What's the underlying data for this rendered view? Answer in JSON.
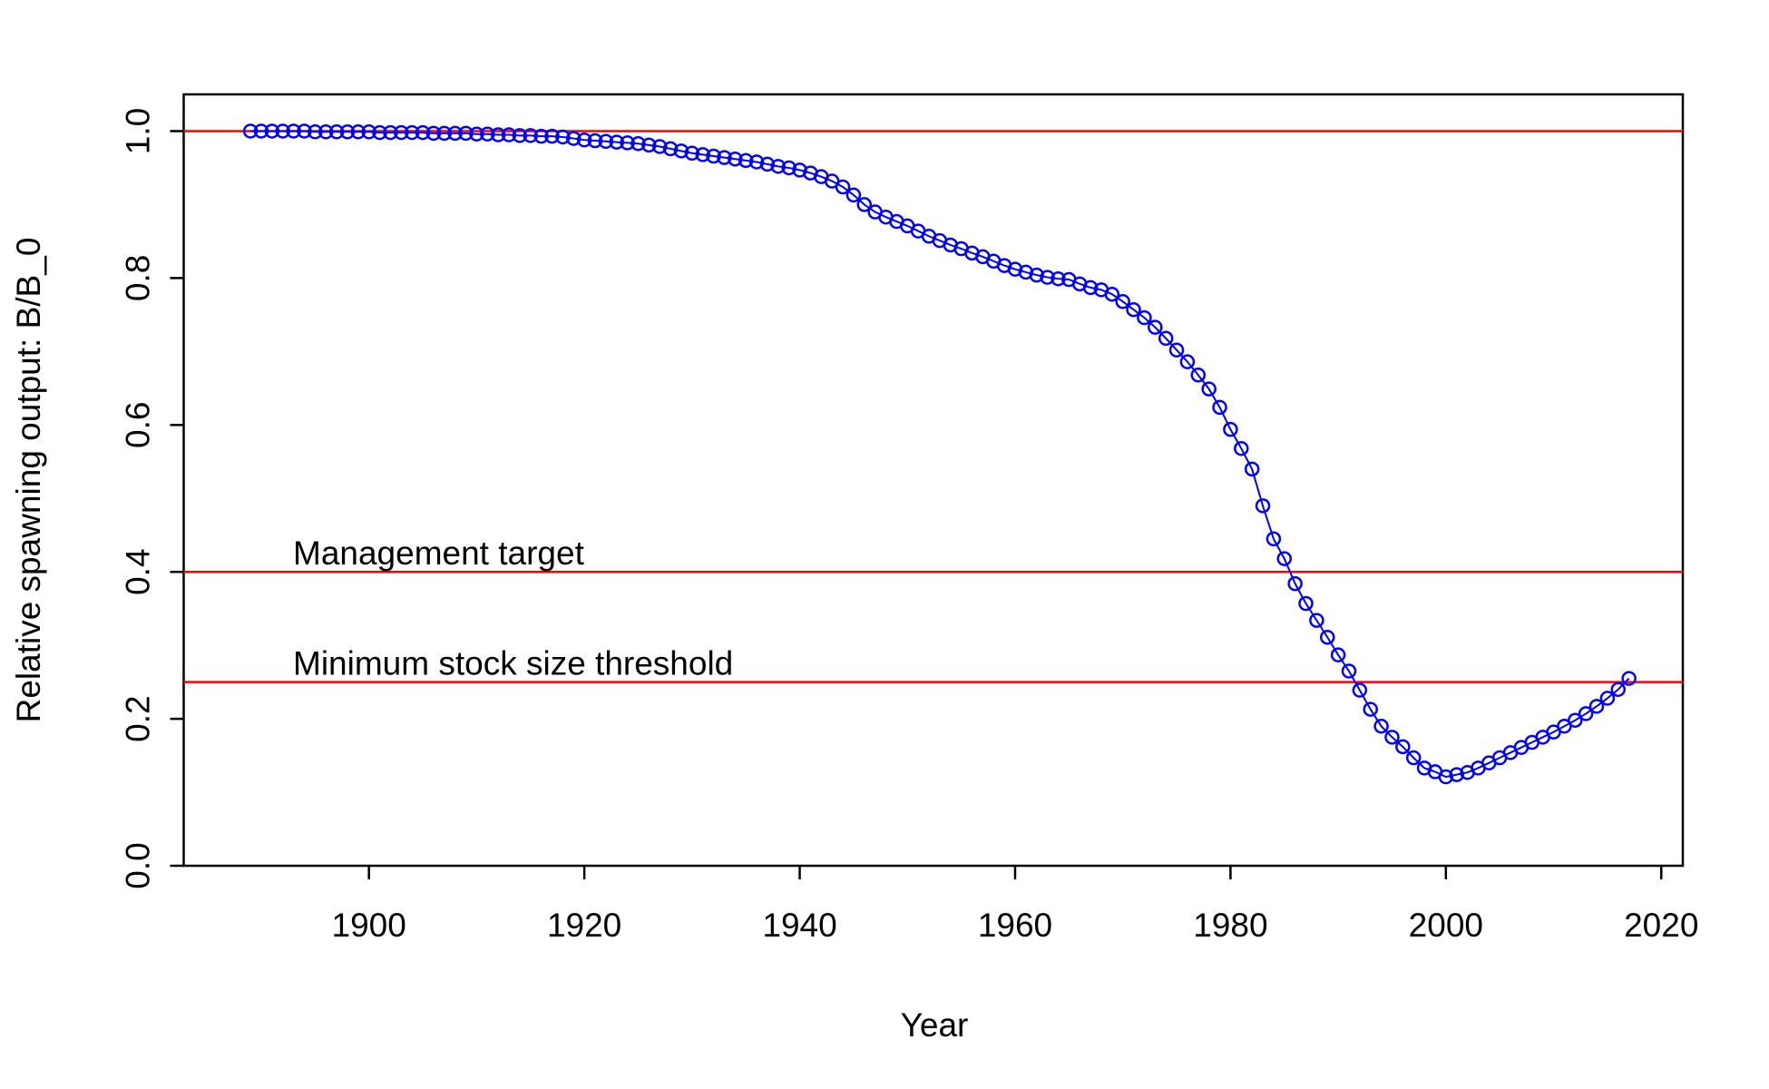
{
  "chart_data": {
    "type": "line",
    "xlabel": "Year",
    "ylabel": "Relative spawning output: B/B_0",
    "xlim": [
      1882.8,
      2022.0
    ],
    "ylim": [
      0,
      1.05
    ],
    "xticks": [
      1900,
      1920,
      1940,
      1960,
      1980,
      2000,
      2020
    ],
    "yticks": [
      {
        "value": 0,
        "label": "0.0"
      },
      0.2,
      0.4,
      0.6,
      0.8,
      {
        "value": 1,
        "label": "1.0"
      }
    ],
    "color": "#0000ff",
    "reference_color": "#ff0000",
    "reference_lines": [
      {
        "value": 1
      },
      {
        "value": 0.4,
        "label": "Management target"
      },
      {
        "value": 0.25,
        "label": "Minimum stock size threshold"
      }
    ],
    "x": [
      1889,
      1890,
      1891,
      1892,
      1893,
      1894,
      1895,
      1896,
      1897,
      1898,
      1899,
      1900,
      1901,
      1902,
      1903,
      1904,
      1905,
      1906,
      1907,
      1908,
      1909,
      1910,
      1911,
      1912,
      1913,
      1914,
      1915,
      1916,
      1917,
      1918,
      1919,
      1920,
      1921,
      1922,
      1923,
      1924,
      1925,
      1926,
      1927,
      1928,
      1929,
      1930,
      1931,
      1932,
      1933,
      1934,
      1935,
      1936,
      1937,
      1938,
      1939,
      1940,
      1941,
      1942,
      1943,
      1944,
      1945,
      1946,
      1947,
      1948,
      1949,
      1950,
      1951,
      1952,
      1953,
      1954,
      1955,
      1956,
      1957,
      1958,
      1959,
      1960,
      1961,
      1962,
      1963,
      1964,
      1965,
      1966,
      1967,
      1968,
      1969,
      1970,
      1971,
      1972,
      1973,
      1974,
      1975,
      1976,
      1977,
      1978,
      1979,
      1980,
      1981,
      1982,
      1983,
      1984,
      1985,
      1986,
      1987,
      1988,
      1989,
      1990,
      1991,
      1992,
      1993,
      1994,
      1995,
      1996,
      1997,
      1998,
      1999,
      2000,
      2001,
      2002,
      2003,
      2004,
      2005,
      2006,
      2007,
      2008,
      2009,
      2010,
      2011,
      2012,
      2013,
      2014,
      2015,
      2016,
      2017
    ],
    "values": [
      1.0,
      1.0,
      1.0,
      1.0,
      1.0,
      1.0,
      0.999,
      0.999,
      0.999,
      0.999,
      0.999,
      0.999,
      0.998,
      0.998,
      0.998,
      0.998,
      0.998,
      0.997,
      0.997,
      0.997,
      0.997,
      0.996,
      0.996,
      0.995,
      0.995,
      0.994,
      0.994,
      0.993,
      0.993,
      0.992,
      0.99,
      0.988,
      0.987,
      0.986,
      0.985,
      0.984,
      0.983,
      0.981,
      0.979,
      0.976,
      0.973,
      0.97,
      0.968,
      0.966,
      0.964,
      0.962,
      0.96,
      0.958,
      0.955,
      0.952,
      0.95,
      0.947,
      0.943,
      0.938,
      0.932,
      0.924,
      0.913,
      0.9,
      0.89,
      0.883,
      0.877,
      0.871,
      0.864,
      0.857,
      0.851,
      0.845,
      0.84,
      0.834,
      0.829,
      0.823,
      0.817,
      0.812,
      0.808,
      0.804,
      0.801,
      0.799,
      0.798,
      0.792,
      0.787,
      0.784,
      0.778,
      0.768,
      0.757,
      0.746,
      0.733,
      0.718,
      0.702,
      0.686,
      0.668,
      0.649,
      0.624,
      0.594,
      0.568,
      0.54,
      0.49,
      0.445,
      0.418,
      0.384,
      0.357,
      0.334,
      0.311,
      0.287,
      0.265,
      0.239,
      0.213,
      0.19,
      0.175,
      0.162,
      0.147,
      0.133,
      0.128,
      0.121,
      0.124,
      0.127,
      0.133,
      0.14,
      0.147,
      0.154,
      0.161,
      0.168,
      0.175,
      0.182,
      0.19,
      0.198,
      0.207,
      0.217,
      0.228,
      0.24,
      0.255
    ]
  }
}
